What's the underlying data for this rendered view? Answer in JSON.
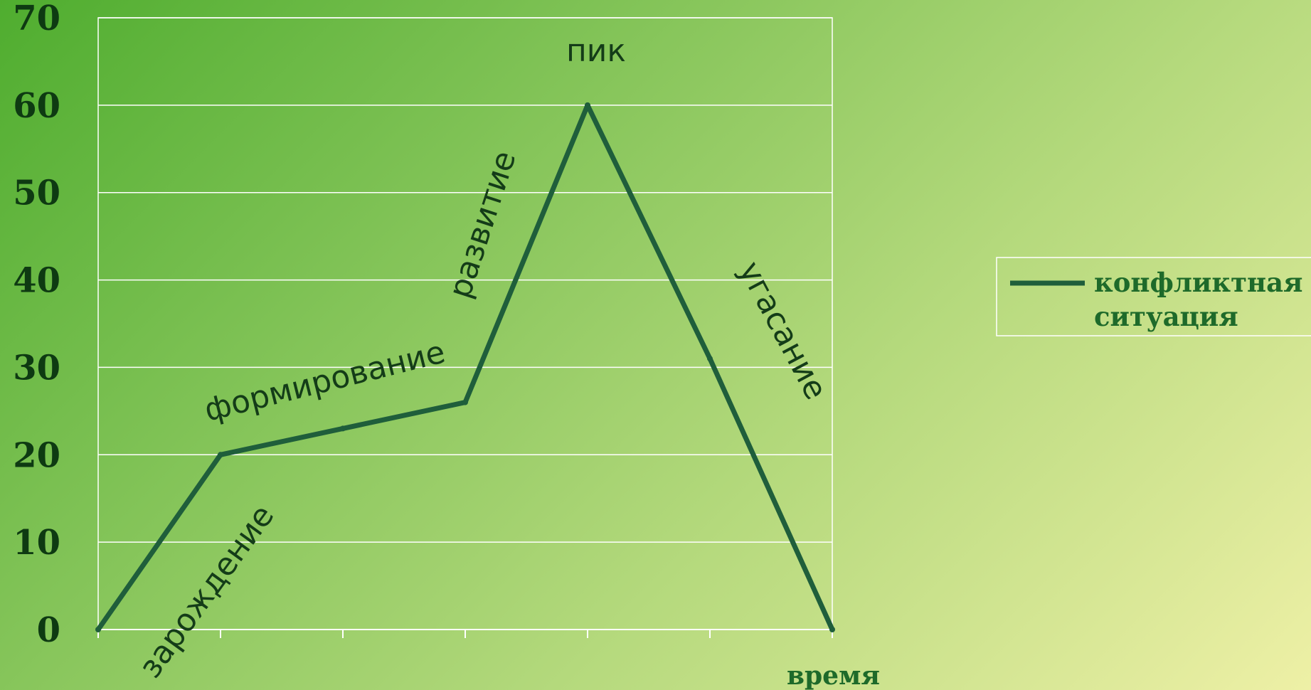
{
  "chart_data": {
    "type": "line",
    "x": [
      0,
      1,
      2,
      3,
      4,
      5,
      6
    ],
    "series": [
      {
        "name": "конфликтная ситуация",
        "values": [
          0,
          20,
          23,
          26,
          60,
          31,
          0
        ],
        "color": "#1f5e3b"
      }
    ],
    "ylim": [
      0,
      70
    ],
    "yticks": [
      0,
      10,
      20,
      30,
      40,
      50,
      60,
      70
    ],
    "xlabel": "время",
    "ylabel": "",
    "grid": true,
    "legend": {
      "position": "right",
      "lines": [
        "конфликтная",
        "ситуация"
      ]
    },
    "annotations": {
      "origin": "зарождение",
      "formation": "формирование",
      "development": "развитие",
      "peak": "пик",
      "decline": "угасание"
    }
  }
}
